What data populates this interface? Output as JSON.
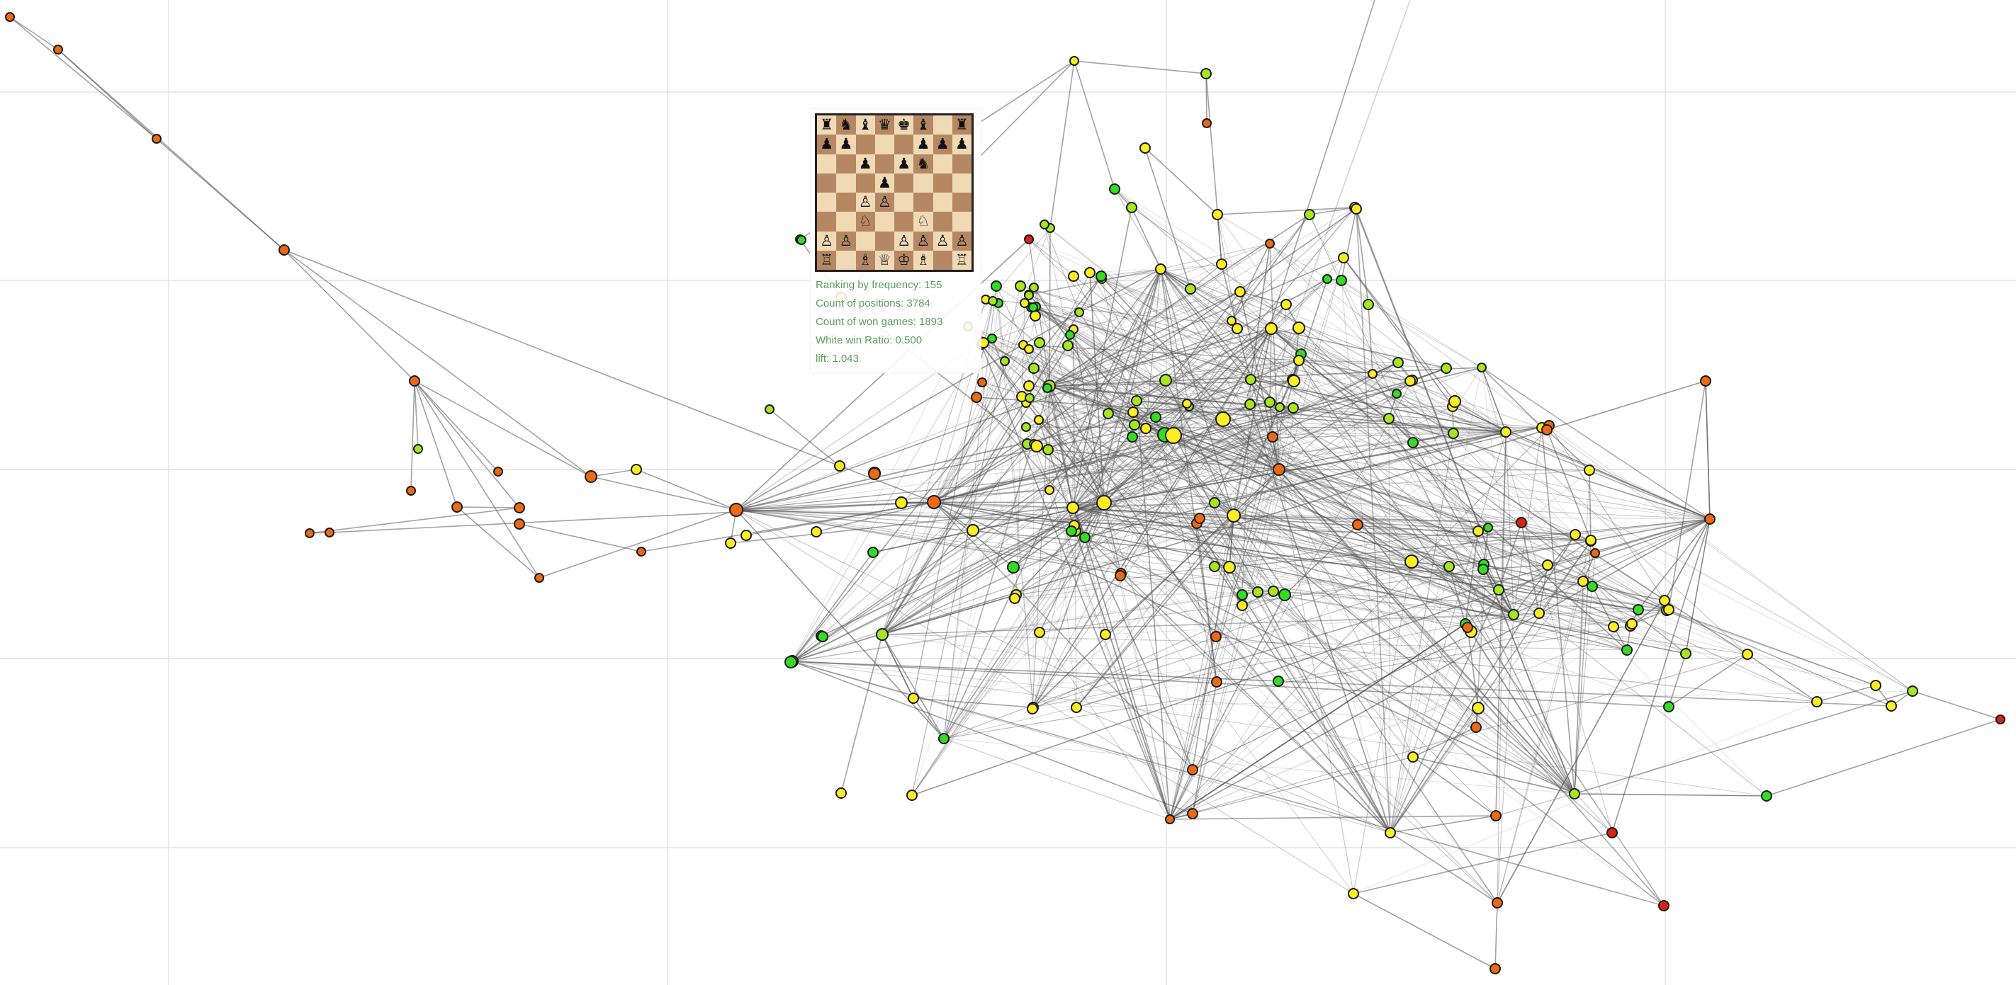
{
  "graph": {
    "colors": {
      "green": "#33dd22",
      "lime": "#a5e81e",
      "yellow": "#ffee22",
      "orange": "#ee6a11",
      "red": "#dd2211",
      "edge": "#555555",
      "grid": "#e4e4e4"
    }
  },
  "tooltip": {
    "board_fen": "rnbqkb1r/pp3ppp/2p1pn2/3p4/2PP4/2N2N2/PP2PPPP/R1BQKB1R",
    "lines": [
      "Ranking by frequency: 155",
      "Count of positions: 3784",
      "Count of won games: 1893",
      "White win Ratio: 0.500",
      "lift: 1.043"
    ]
  }
}
